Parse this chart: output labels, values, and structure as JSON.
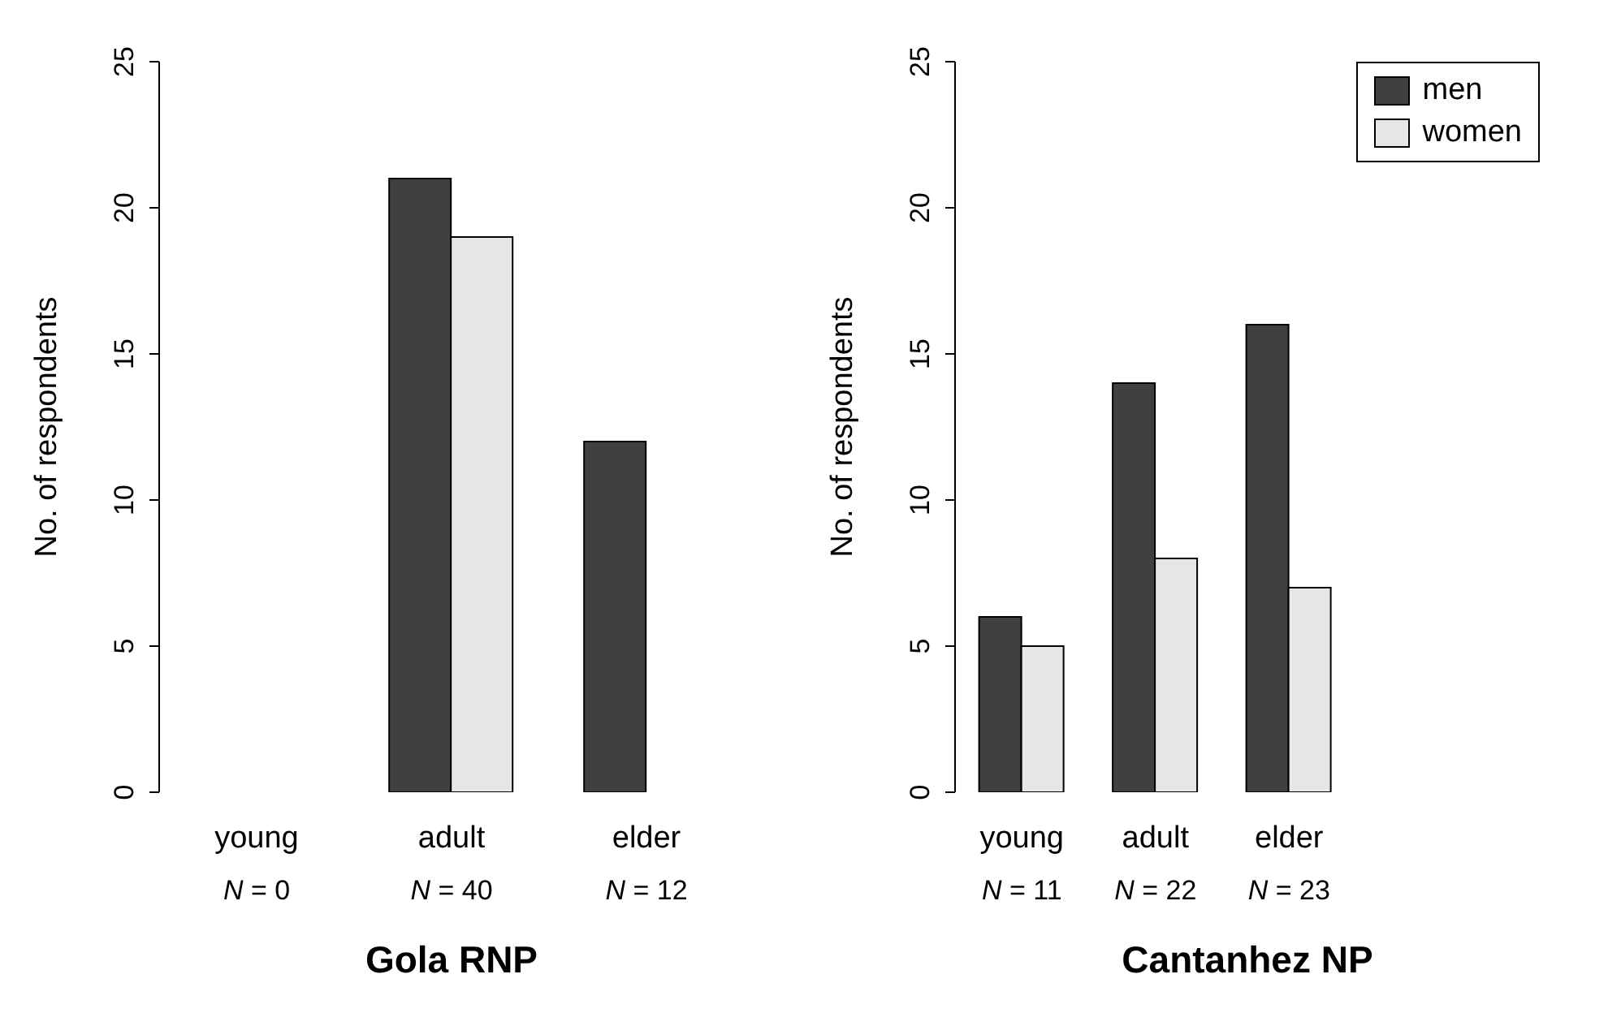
{
  "chart_data": [
    {
      "type": "bar",
      "title": "Gola RNP",
      "ylabel": "No. of respondents",
      "categories": [
        "young",
        "adult",
        "elder"
      ],
      "series": [
        {
          "color": "#404040",
          "values": [
            0,
            21,
            12
          ]
        },
        {
          "color": "#e6e6e6",
          "values": [
            0,
            19,
            0
          ]
        }
      ],
      "ylim": [
        0,
        25
      ],
      "yticks": [
        0,
        5,
        10,
        15,
        20,
        25
      ],
      "grid": false,
      "legend": false,
      "annotations": [
        "N = 0",
        "N = 40",
        "N = 12"
      ]
    },
    {
      "type": "bar",
      "title": "Cantanhez NP",
      "ylabel": "No. of respondents",
      "categories": [
        "young",
        "adult",
        "elder"
      ],
      "series": [
        {
          "name": "men",
          "color": "#404040",
          "values": [
            6,
            14,
            16
          ]
        },
        {
          "name": "women",
          "color": "#e6e6e6",
          "values": [
            5,
            8,
            7
          ]
        }
      ],
      "ylim": [
        0,
        25
      ],
      "yticks": [
        0,
        5,
        10,
        15,
        20,
        25
      ],
      "grid": false,
      "legend": "top right",
      "annotations": [
        "N = 11",
        "N = 22",
        "N = 23"
      ]
    }
  ]
}
